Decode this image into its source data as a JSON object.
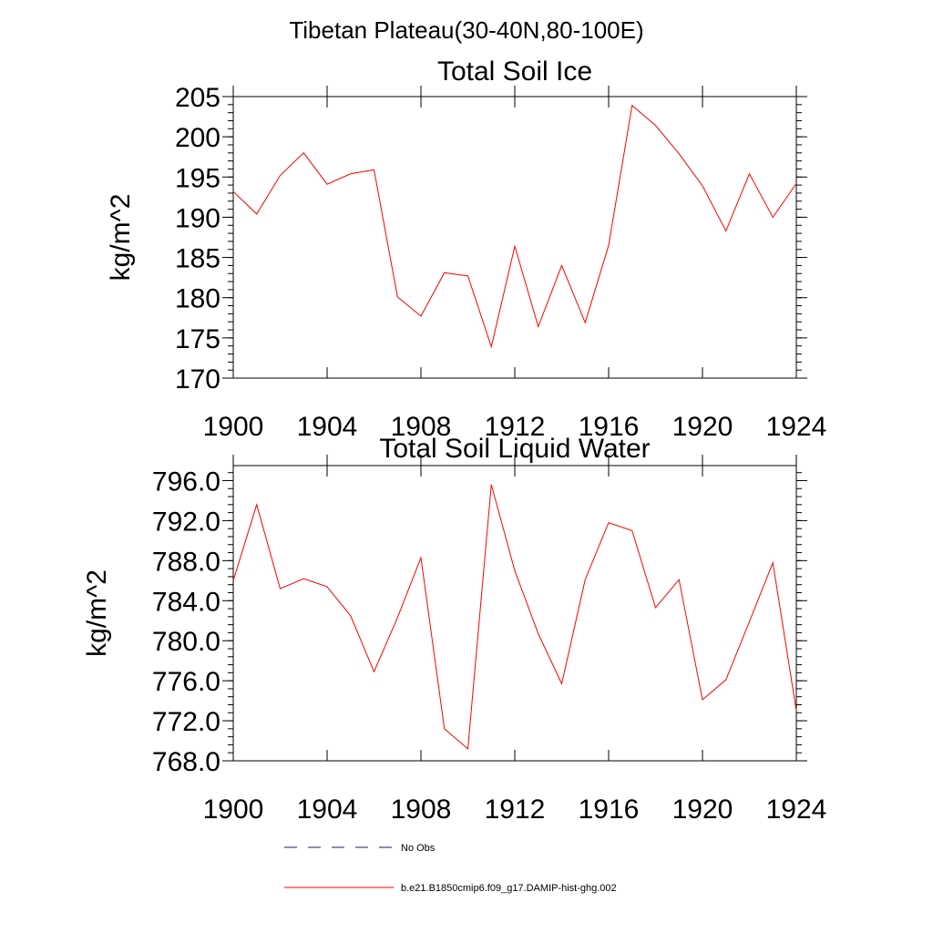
{
  "figure": {
    "suptitle": "Tibetan Plateau(30-40N,80-100E)"
  },
  "legend": {
    "items": [
      {
        "label": "No Obs",
        "color": "#1a1a5a",
        "dashed": true
      },
      {
        "label": "b.e21.B1850cmip6.f09_g17.DAMIP-hist-ghg.002",
        "color": "#ff0000",
        "dashed": false
      }
    ]
  },
  "chart_data": [
    {
      "type": "line",
      "title": "Total Soil Ice",
      "xlabel": "",
      "ylabel": "kg/m^2",
      "xlim": [
        1900,
        1924
      ],
      "ylim": [
        170,
        205
      ],
      "x_ticks": [
        1900,
        1904,
        1908,
        1912,
        1916,
        1920,
        1924
      ],
      "x_tick_labels": [
        "1900",
        "1904",
        "1908",
        "1912",
        "1916",
        "1920",
        "1924"
      ],
      "y_ticks": [
        170,
        175,
        180,
        185,
        190,
        195,
        200,
        205
      ],
      "y_tick_labels": [
        "170",
        "175",
        "180",
        "185",
        "190",
        "195",
        "200",
        "205"
      ],
      "x": [
        1900,
        1901,
        1902,
        1903,
        1904,
        1905,
        1906,
        1907,
        1908,
        1909,
        1910,
        1911,
        1912,
        1913,
        1914,
        1915,
        1916,
        1917,
        1918,
        1919,
        1920,
        1921,
        1922,
        1923,
        1924
      ],
      "series": [
        {
          "color": "#ff0000",
          "values": [
            193.2,
            190.4,
            195.2,
            198.0,
            194.1,
            195.4,
            195.9,
            180.1,
            177.7,
            183.1,
            182.7,
            173.9,
            186.4,
            176.4,
            184.0,
            176.9,
            186.5,
            203.9,
            201.4,
            197.9,
            193.9,
            188.3,
            195.4,
            190.0,
            194.2
          ]
        }
      ],
      "grid": false
    },
    {
      "type": "line",
      "title": "Total Soil Liquid Water",
      "xlabel": "",
      "ylabel": "kg/m^2",
      "xlim": [
        1900,
        1924
      ],
      "ylim": [
        768,
        797.5
      ],
      "x_ticks": [
        1900,
        1904,
        1908,
        1912,
        1916,
        1920,
        1924
      ],
      "x_tick_labels": [
        "1900",
        "1904",
        "1908",
        "1912",
        "1916",
        "1920",
        "1924"
      ],
      "y_ticks": [
        768,
        772,
        776,
        780,
        784,
        788,
        792,
        796
      ],
      "y_tick_labels": [
        "768.0",
        "772.0",
        "776.0",
        "780.0",
        "784.0",
        "788.0",
        "792.0",
        "796.0"
      ],
      "x": [
        1900,
        1901,
        1902,
        1903,
        1904,
        1905,
        1906,
        1907,
        1908,
        1909,
        1910,
        1911,
        1912,
        1913,
        1914,
        1915,
        1916,
        1917,
        1918,
        1919,
        1920,
        1921,
        1922,
        1923,
        1924
      ],
      "series": [
        {
          "color": "#ff0000",
          "values": [
            786.0,
            793.6,
            785.2,
            786.2,
            785.4,
            782.5,
            776.9,
            782.3,
            788.3,
            771.2,
            769.2,
            795.6,
            787.0,
            780.7,
            775.7,
            786.1,
            791.8,
            791.0,
            783.3,
            786.1,
            774.1,
            776.1,
            781.9,
            787.8,
            773.0
          ]
        }
      ],
      "grid": false
    }
  ]
}
